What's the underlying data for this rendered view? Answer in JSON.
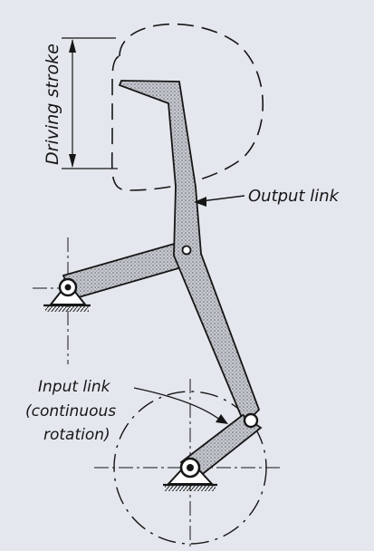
{
  "labels": {
    "driving_stroke": "Driving stroke",
    "output_link": "Output link",
    "input_link_line1": "Input link",
    "input_link_line2": "(continuous",
    "input_link_line3": "rotation)"
  },
  "colors": {
    "ink": "#161616",
    "link_fill": "#b8bcc2",
    "paper": "#e4e8ee",
    "pin_fill": "#ffffff"
  },
  "icons": {
    "ground_pivot": "triangle-with-hatched-base",
    "joint": "small-circle-pin"
  }
}
